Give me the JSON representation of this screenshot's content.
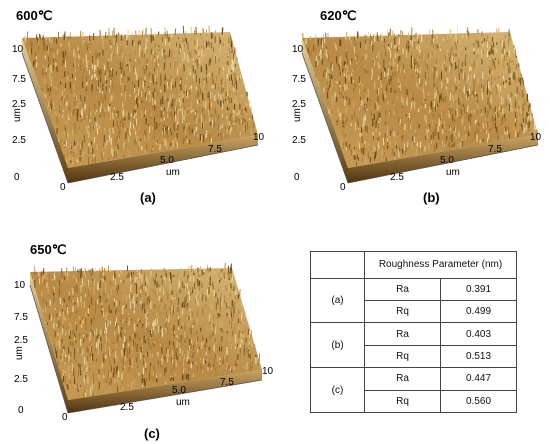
{
  "panels": [
    {
      "temperature": "600℃",
      "caption": "(a)",
      "x_ticks": [
        "0",
        "2.5",
        "5.0",
        "7.5",
        "10"
      ],
      "x_unit": "um",
      "y_ticks": [
        "0",
        "2.5",
        "2.5",
        "7.5",
        "10"
      ],
      "y_unit": "um"
    },
    {
      "temperature": "620℃",
      "caption": "(b)",
      "x_ticks": [
        "0",
        "2.5",
        "5.0",
        "7.5",
        "10"
      ],
      "x_unit": "um",
      "y_ticks": [
        "0",
        "2.5",
        "2.5",
        "7.5",
        "10"
      ],
      "y_unit": "um"
    },
    {
      "temperature": "650℃",
      "caption": "(c)",
      "x_ticks": [
        "0",
        "2.5",
        "5.0",
        "7.5",
        "10"
      ],
      "x_unit": "um",
      "y_ticks": [
        "0",
        "2.5",
        "2.5",
        "7.5",
        "10"
      ],
      "y_unit": "um"
    }
  ],
  "colors": {
    "surface_dark": "#6b4a17",
    "surface_mid": "#b88a45",
    "surface_light": "#ecd9a6"
  },
  "table": {
    "header": "Roughness Parameter (nm)",
    "rows": [
      {
        "sample": "(a)",
        "params": [
          {
            "name": "Ra",
            "value": "0.391"
          },
          {
            "name": "Rq",
            "value": "0.499"
          }
        ]
      },
      {
        "sample": "(b)",
        "params": [
          {
            "name": "Ra",
            "value": "0.403"
          },
          {
            "name": "Rq",
            "value": "0.513"
          }
        ]
      },
      {
        "sample": "(c)",
        "params": [
          {
            "name": "Ra",
            "value": "0.447"
          },
          {
            "name": "Rq",
            "value": "0.560"
          }
        ]
      }
    ]
  }
}
